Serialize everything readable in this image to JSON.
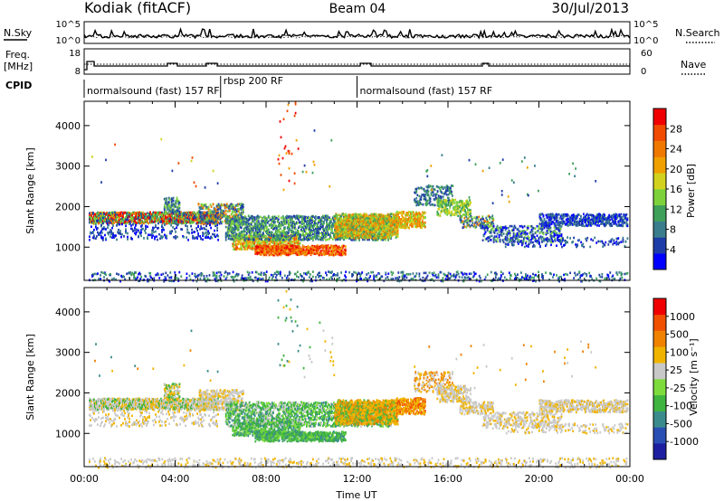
{
  "header": {
    "station": "Kodiak (fitACF)",
    "beam": "Beam 04",
    "date": "30/Jul/2013"
  },
  "small_panels": {
    "nsky_label": "N.Sky",
    "nsearch_label": "N.Search",
    "freq_label_line1": "Freq.",
    "freq_label_line2": "[MHz]",
    "nave_label": "Nave",
    "cpid_label": "CPID",
    "count_ticks": [
      "10^5",
      "10^0"
    ],
    "count_ticks_right": [
      "10^5",
      "10^0"
    ],
    "freq_ticks": [
      "18",
      "8"
    ],
    "nave_ticks": [
      "60",
      "0"
    ]
  },
  "cpid_segments": [
    {
      "label": "normalsound (fast) 157 RF",
      "start_hour": 0,
      "end_hour": 6
    },
    {
      "label": "rbsp 200 RF",
      "start_hour": 6,
      "end_hour": 12
    },
    {
      "label": "normalsound (fast) 157 RF",
      "start_hour": 12,
      "end_hour": 24
    }
  ],
  "colors": {
    "power": [
      "#0000ff",
      "#1e3ca8",
      "#3a7d8c",
      "#3fa05a",
      "#7dd23c",
      "#d2d21e",
      "#f0a000",
      "#f07800",
      "#f04b00",
      "#f00000"
    ],
    "velocity": [
      "#1e1ea0",
      "#2a4fb4",
      "#3a8c8c",
      "#3fb43f",
      "#7ddc3c",
      "#c8c8c8",
      "#f0b400",
      "#f08200",
      "#f05000",
      "#f00000"
    ]
  },
  "chart_data": [
    {
      "type": "heatmap",
      "title": "Power",
      "ylabel": "Slant Range [km]",
      "xlabel": "Time UT",
      "xlim": [
        0,
        24
      ],
      "ylim": [
        180,
        4600
      ],
      "x_ticks": [
        "00:00",
        "04:00",
        "08:00",
        "12:00",
        "16:00",
        "20:00",
        "00:00"
      ],
      "x_tick_hours": [
        0,
        4,
        8,
        12,
        16,
        20,
        24
      ],
      "y_ticks": [
        1000,
        2000,
        3000,
        4000
      ],
      "colorbar_label": "Power [dB]",
      "colorbar_ticks": [
        "4",
        "8",
        "12",
        "16",
        "20",
        "24",
        "28"
      ],
      "colorbar_range": [
        0,
        32
      ]
    },
    {
      "type": "heatmap",
      "title": "Velocity",
      "ylabel": "Slant Range [km]",
      "xlabel": "Time UT",
      "xlim": [
        0,
        24
      ],
      "ylim": [
        180,
        4600
      ],
      "x_ticks": [
        "00:00",
        "04:00",
        "08:00",
        "12:00",
        "16:00",
        "20:00",
        "00:00"
      ],
      "x_tick_hours": [
        0,
        4,
        8,
        12,
        16,
        20,
        24
      ],
      "y_ticks": [
        1000,
        2000,
        3000,
        4000
      ],
      "colorbar_label": "Velocity [m s⁻¹]",
      "colorbar_ticks": [
        "1000",
        "500",
        "100",
        "25",
        "-25",
        "-100",
        "-500",
        "-1000"
      ]
    }
  ]
}
